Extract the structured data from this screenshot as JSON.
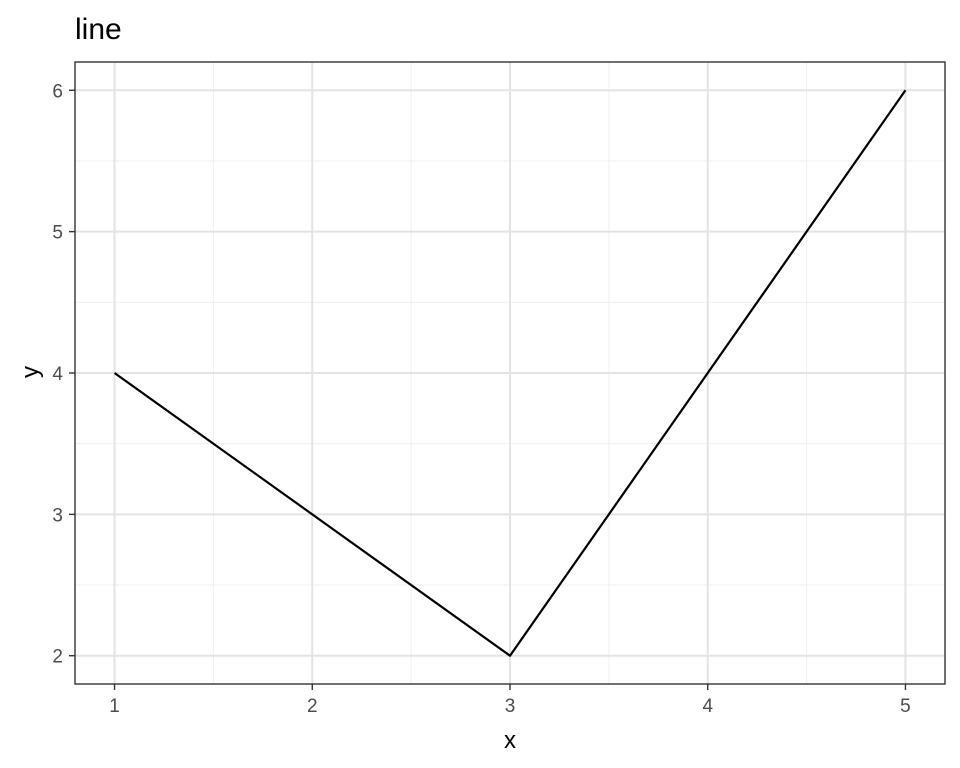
{
  "chart_data": {
    "type": "line",
    "title": "line",
    "xlabel": "x",
    "ylabel": "y",
    "x": [
      1,
      2,
      3,
      4,
      5
    ],
    "series": [
      {
        "values": [
          4,
          3,
          2,
          4,
          6
        ]
      }
    ],
    "xlim": [
      0.8,
      5.2
    ],
    "ylim": [
      1.8,
      6.2
    ],
    "x_ticks": [
      1,
      2,
      3,
      4,
      5
    ],
    "y_ticks": [
      2,
      3,
      4,
      5,
      6
    ],
    "grid": true,
    "colors": {
      "line": "#000000",
      "grid_major": "#e3e3e3",
      "grid_minor": "#efefef",
      "panel_border": "#333333",
      "tick_text": "#4d4d4d"
    }
  }
}
